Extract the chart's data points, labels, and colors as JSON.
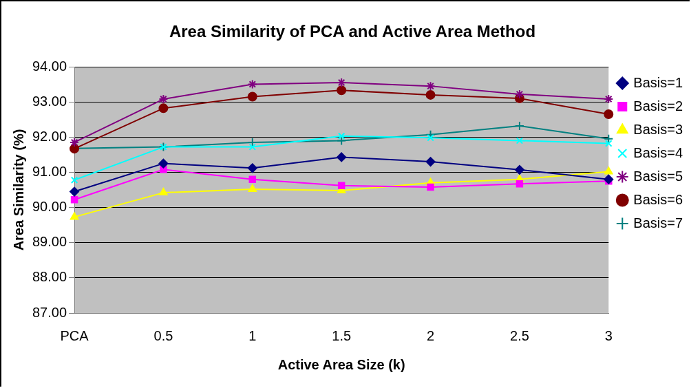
{
  "chart_data": {
    "type": "line",
    "title": "Area Similarity of PCA and Active Area Method",
    "xlabel": "Active Area Size (k)",
    "ylabel": "Area Similarity (%)",
    "categories": [
      "PCA",
      "0.5",
      "1",
      "1.5",
      "2",
      "2.5",
      "3"
    ],
    "ylim": [
      87,
      94
    ],
    "yticks": [
      {
        "value": 87,
        "label": "87.00"
      },
      {
        "value": 88,
        "label": "88.00"
      },
      {
        "value": 89,
        "label": "89.00"
      },
      {
        "value": 90,
        "label": "90.00"
      },
      {
        "value": 91,
        "label": "91.00"
      },
      {
        "value": 92,
        "label": "92.00"
      },
      {
        "value": 93,
        "label": "93.00"
      },
      {
        "value": 94,
        "label": "94.00"
      }
    ],
    "grid": "y",
    "legend": "right",
    "series": [
      {
        "name": "Basis=1",
        "color": "#000080",
        "marker": "diamond",
        "values": [
          90.45,
          91.25,
          91.12,
          91.43,
          91.3,
          91.07,
          90.8
        ]
      },
      {
        "name": "Basis=2",
        "color": "#ff00ff",
        "marker": "square",
        "values": [
          90.22,
          91.08,
          90.8,
          90.62,
          90.58,
          90.67,
          90.75
        ]
      },
      {
        "name": "Basis=3",
        "color": "#ffff00",
        "marker": "triangle",
        "values": [
          89.73,
          90.42,
          90.52,
          90.48,
          90.7,
          90.8,
          91.02
        ]
      },
      {
        "name": "Basis=4",
        "color": "#00ffff",
        "marker": "x",
        "values": [
          90.78,
          91.72,
          91.72,
          92.03,
          91.98,
          91.9,
          91.82
        ]
      },
      {
        "name": "Basis=5",
        "color": "#800080",
        "marker": "cross",
        "values": [
          91.85,
          93.08,
          93.5,
          93.55,
          93.45,
          93.22,
          93.08
        ]
      },
      {
        "name": "Basis=6",
        "color": "#800000",
        "marker": "circle",
        "values": [
          91.67,
          92.82,
          93.15,
          93.33,
          93.2,
          93.1,
          92.65
        ]
      },
      {
        "name": "Basis=7",
        "color": "#008080",
        "marker": "plus",
        "values": [
          91.68,
          91.72,
          91.85,
          91.9,
          92.07,
          92.32,
          91.95
        ]
      }
    ]
  }
}
